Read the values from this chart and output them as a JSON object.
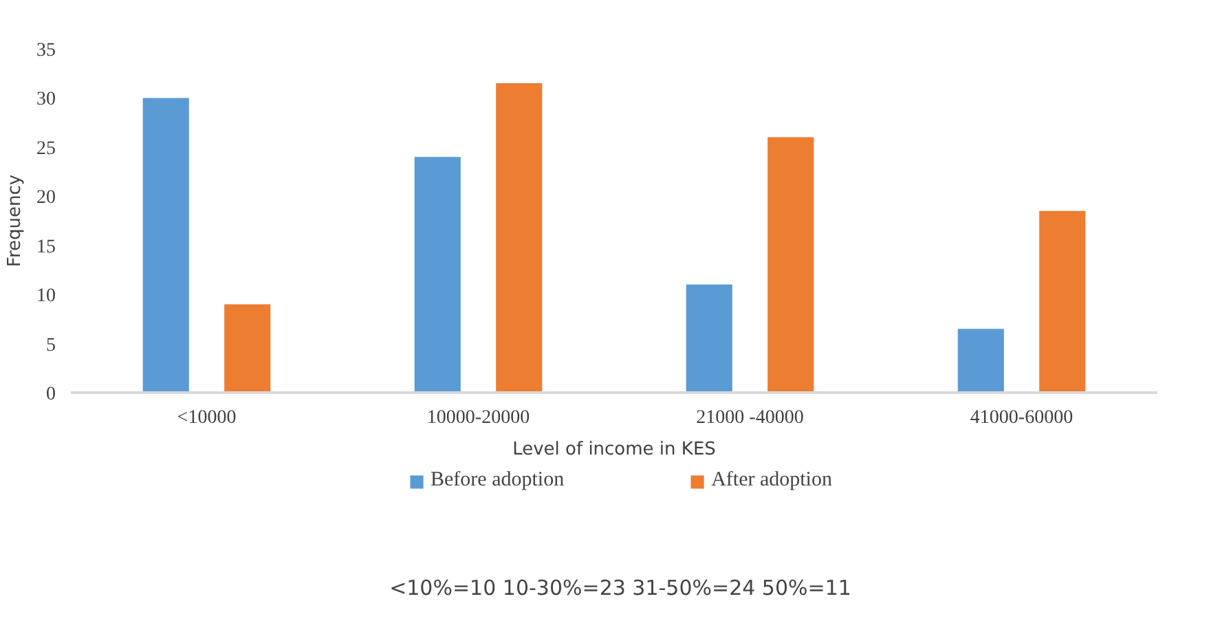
{
  "chart_data": {
    "type": "bar",
    "xlabel": "Level of income in KES",
    "ylabel": "Frequency",
    "categories": [
      "<10000",
      "10000-20000",
      "21000 -40000",
      "41000-60000"
    ],
    "series": [
      {
        "name": "Before adoption",
        "color": "#5b9bd5",
        "values": [
          30,
          24,
          11,
          6.5
        ]
      },
      {
        "name": "After adoption",
        "color": "#ed7d31",
        "values": [
          9,
          31.5,
          26,
          18.5
        ]
      }
    ],
    "ylim": [
      0,
      35
    ],
    "yticks": [
      0,
      5,
      10,
      15,
      20,
      25,
      30,
      35
    ],
    "grid": false,
    "legend": "bottom",
    "annotations": [
      "<10%=10 10-30%=23 31-50%=24 50%=11"
    ]
  }
}
